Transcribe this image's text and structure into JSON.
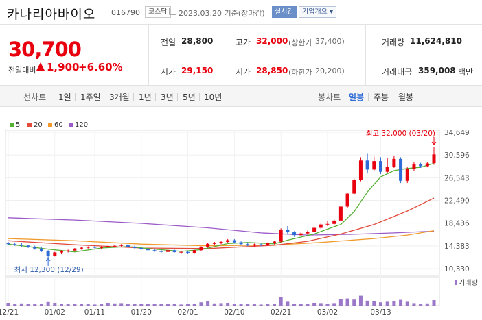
{
  "header": {
    "name": "카나리아바이오",
    "code": "016790",
    "market": "코스닥",
    "date": "2023.03.20",
    "basis": "기준(장마감)",
    "live": "실시간",
    "corp_info": "기업개요"
  },
  "quote": {
    "price": "30,700",
    "change_label": "전일대비",
    "change_dir": "up",
    "change": "1,900",
    "change_pct": "+6.60%"
  },
  "stats": {
    "prev_label": "전일",
    "prev": "28,800",
    "high_label": "고가",
    "high": "32,000",
    "upper_label": "(상한가",
    "upper": "37,400)",
    "volume_label": "거래량",
    "volume": "11,624,810",
    "open_label": "시가",
    "open": "29,150",
    "low_label": "저가",
    "low": "28,850",
    "lower_label": "(하한가",
    "lower": "20,200)",
    "amount_label": "거래대금",
    "amount": "359,008",
    "amount_unit": "백만"
  },
  "tabs": {
    "line_label": "선차트",
    "periods": [
      "1일",
      "1주일",
      "3개월",
      "1년",
      "3년",
      "5년",
      "10년"
    ],
    "candle_label": "봉차트",
    "candles": [
      "일봉",
      "주봉",
      "월봉"
    ],
    "active_candle": "일봉"
  },
  "colors": {
    "up": "#e8000f",
    "down": "#2e6bd6",
    "ma5": "#55b034",
    "ma20": "#e24a3b",
    "ma60": "#f09a2c",
    "ma120": "#9b5cc9",
    "vol": "#9b77c9"
  },
  "chart_data": {
    "type": "candlestick",
    "legend": [
      "5",
      "20",
      "60",
      "120"
    ],
    "x_ticks": [
      "12/21",
      "01/02",
      "01/11",
      "01/20",
      "02/01",
      "02/10",
      "02/21",
      "03/02",
      "03/13"
    ],
    "y_ticks": [
      34649,
      30596,
      26543,
      22490,
      18436,
      14383,
      10330
    ],
    "y_range": [
      10330,
      34649
    ],
    "high_annotation": "최고 32,000 (03/20)",
    "low_annotation": "최저 12,300 (12/29)",
    "volume_label": "거래량",
    "candles": [
      [
        14900,
        15100,
        14500,
        14700,
        0.1
      ],
      [
        14700,
        15000,
        14400,
        14600,
        0.06
      ],
      [
        14600,
        14900,
        14200,
        14450,
        0.08
      ],
      [
        14450,
        14600,
        14000,
        14150,
        0.05
      ],
      [
        14150,
        14400,
        13700,
        13900,
        0.06
      ],
      [
        13900,
        14100,
        13300,
        13500,
        0.05
      ],
      [
        13500,
        13600,
        12300,
        12600,
        0.13
      ],
      [
        12600,
        13300,
        12500,
        13200,
        0.1
      ],
      [
        13200,
        13600,
        13000,
        13400,
        0.06
      ],
      [
        13400,
        13700,
        13200,
        13550,
        0.05
      ],
      [
        13550,
        14000,
        13400,
        13900,
        0.06
      ],
      [
        13900,
        14200,
        13700,
        14050,
        0.05
      ],
      [
        14050,
        14300,
        13900,
        14200,
        0.06
      ],
      [
        14200,
        14350,
        13950,
        14050,
        0.04
      ],
      [
        14050,
        14300,
        13800,
        14150,
        0.05
      ],
      [
        14150,
        14500,
        14000,
        14350,
        0.1
      ],
      [
        14350,
        14600,
        14100,
        14400,
        0.08
      ],
      [
        14400,
        14700,
        14250,
        14550,
        0.09
      ],
      [
        14550,
        14700,
        14100,
        14250,
        0.05
      ],
      [
        14250,
        14400,
        13900,
        14000,
        0.06
      ],
      [
        14000,
        14200,
        13700,
        13850,
        0.05
      ],
      [
        13850,
        14000,
        13400,
        13600,
        0.07
      ],
      [
        13600,
        13900,
        13300,
        13500,
        0.05
      ],
      [
        13500,
        13700,
        13150,
        13300,
        0.06
      ],
      [
        13300,
        13700,
        13200,
        13600,
        0.05
      ],
      [
        13600,
        13700,
        13200,
        13250,
        0.05
      ],
      [
        13250,
        13500,
        13050,
        13300,
        0.04
      ],
      [
        13300,
        13500,
        13000,
        13150,
        0.05
      ],
      [
        13150,
        13650,
        13100,
        13600,
        0.07
      ],
      [
        13600,
        14300,
        13500,
        14200,
        0.12
      ],
      [
        14200,
        14900,
        14050,
        14750,
        0.16
      ],
      [
        14750,
        15100,
        14450,
        14900,
        0.08
      ],
      [
        14900,
        15300,
        14650,
        15100,
        0.09
      ],
      [
        15100,
        15600,
        14900,
        15400,
        0.1
      ],
      [
        15400,
        15600,
        14900,
        15000,
        0.06
      ],
      [
        15000,
        15200,
        14500,
        14700,
        0.05
      ],
      [
        14700,
        15000,
        14350,
        14450,
        0.05
      ],
      [
        14450,
        14800,
        14250,
        14650,
        0.05
      ],
      [
        14650,
        14800,
        14300,
        14500,
        0.04
      ],
      [
        14500,
        15000,
        14400,
        14900,
        0.05
      ],
      [
        14900,
        15300,
        14650,
        15150,
        0.06
      ],
      [
        15150,
        17500,
        15000,
        17300,
        0.3
      ],
      [
        17300,
        17900,
        16500,
        16800,
        0.14
      ],
      [
        16800,
        17000,
        16000,
        16300,
        0.07
      ],
      [
        16300,
        16800,
        16100,
        16600,
        0.06
      ],
      [
        16600,
        17100,
        16400,
        16900,
        0.06
      ],
      [
        16900,
        17800,
        16800,
        17600,
        0.1
      ],
      [
        17600,
        18400,
        17400,
        18200,
        0.09
      ],
      [
        18200,
        18800,
        17900,
        18300,
        0.07
      ],
      [
        18300,
        19100,
        18100,
        18900,
        0.09
      ],
      [
        18900,
        21600,
        18800,
        21400,
        0.24
      ],
      [
        21400,
        23900,
        21200,
        23700,
        0.26
      ],
      [
        23700,
        26400,
        23600,
        26100,
        0.22
      ],
      [
        26100,
        30200,
        25900,
        29600,
        0.36
      ],
      [
        29600,
        30800,
        27300,
        28000,
        0.18
      ],
      [
        28000,
        30300,
        27800,
        29500,
        0.17
      ],
      [
        29500,
        30200,
        27200,
        27600,
        0.12
      ],
      [
        27600,
        30000,
        27400,
        28500,
        0.14
      ],
      [
        28500,
        30500,
        28300,
        29900,
        0.15
      ],
      [
        29900,
        30200,
        25600,
        26000,
        0.21
      ],
      [
        26000,
        28400,
        25600,
        28100,
        0.14
      ],
      [
        28100,
        29300,
        27800,
        28900,
        0.09
      ],
      [
        28900,
        29200,
        28300,
        28600,
        0.07
      ],
      [
        28600,
        29300,
        28400,
        29100,
        0.08
      ],
      [
        29150,
        32000,
        28850,
        30700,
        0.2
      ]
    ],
    "ma": {
      "ma5": [
        [
          0,
          14700
        ],
        [
          6,
          13800
        ],
        [
          10,
          13300
        ],
        [
          14,
          14000
        ],
        [
          18,
          14250
        ],
        [
          22,
          13800
        ],
        [
          26,
          13400
        ],
        [
          29,
          13700
        ],
        [
          33,
          14800
        ],
        [
          36,
          15000
        ],
        [
          40,
          14750
        ],
        [
          42,
          15400
        ],
        [
          46,
          16500
        ],
        [
          49,
          17800
        ],
        [
          50,
          18200
        ],
        [
          52,
          20500
        ],
        [
          54,
          24000
        ],
        [
          56,
          26700
        ],
        [
          58,
          27800
        ],
        [
          60,
          28200
        ],
        [
          62,
          28400
        ],
        [
          64,
          29100
        ]
      ],
      "ma20": [
        [
          0,
          15300
        ],
        [
          10,
          14600
        ],
        [
          20,
          14000
        ],
        [
          30,
          13900
        ],
        [
          40,
          14500
        ],
        [
          45,
          15200
        ],
        [
          50,
          16500
        ],
        [
          55,
          18200
        ],
        [
          60,
          20600
        ],
        [
          64,
          22900
        ]
      ],
      "ma60": [
        [
          0,
          15700
        ],
        [
          10,
          15300
        ],
        [
          20,
          14700
        ],
        [
          30,
          14400
        ],
        [
          40,
          14550
        ],
        [
          47,
          15000
        ],
        [
          55,
          15700
        ],
        [
          60,
          16300
        ],
        [
          64,
          17100
        ]
      ],
      "ma120": [
        [
          0,
          19400
        ],
        [
          10,
          19000
        ],
        [
          20,
          18400
        ],
        [
          30,
          17600
        ],
        [
          38,
          16700
        ],
        [
          45,
          16300
        ],
        [
          52,
          16450
        ],
        [
          58,
          16700
        ],
        [
          64,
          17000
        ]
      ]
    }
  }
}
